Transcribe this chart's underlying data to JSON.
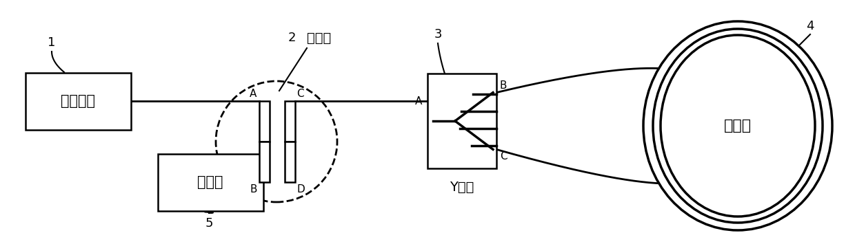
{
  "bg_color": "#ffffff",
  "lc": "#000000",
  "lw": 2.0,
  "source_label": "宽谱光源",
  "detector_label": "探测器",
  "coupler_label": "耦合器",
  "ywaveguide_label": "Y波导",
  "fiber_ring_label": "光纤环",
  "num_1": "1",
  "num_2": "2",
  "num_3": "3",
  "num_4": "4",
  "num_5": "5",
  "port_A": "A",
  "port_B": "B",
  "port_C": "C",
  "port_D": "D"
}
